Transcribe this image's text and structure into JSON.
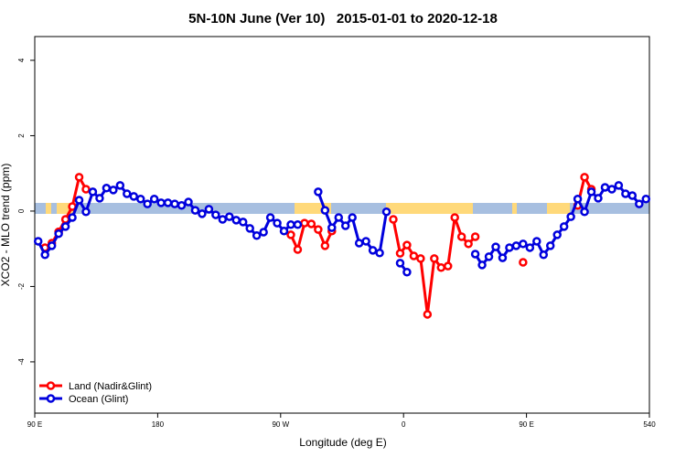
{
  "chart_data": {
    "type": "line",
    "title": "5N-10N June (Ver 10)   2015-01-01 to 2020-12-18",
    "x_label": "Longitude (deg E)",
    "y_label": "XCO2 - MLO trend (ppm)",
    "xlim": [
      90,
      540
    ],
    "xticks": [
      {
        "value": 90,
        "label": "90 E"
      },
      180,
      {
        "value": 270,
        "label": "90 W"
      },
      {
        "value": 360,
        "label": "0"
      },
      {
        "value": 450,
        "label": "90 E"
      },
      540
    ],
    "ylim": [
      -5.36,
      4.63
    ],
    "yticks": [
      -4,
      -2,
      0,
      2,
      4
    ],
    "legend": "bottom-left",
    "series": [
      {
        "name": "Land (Nadir&Glint)",
        "color": "#ff0000",
        "x": [
          97.5,
          102.5,
          107.5,
          112.5,
          117.5,
          122.5,
          127.5,
          200,
          277.5,
          282.5,
          287.5,
          292.5,
          297.5,
          302.5,
          307.5,
          330,
          352.5,
          357.5,
          362.5,
          367.5,
          372.5,
          377.5,
          382.5,
          387.5,
          392.5,
          397.5,
          402.5,
          407.5,
          412.5,
          430,
          447.5,
          470,
          487.5,
          492.5,
          497.5
        ],
        "values": [
          -0.97,
          -0.85,
          -0.55,
          -0.22,
          0.12,
          0.9,
          0.58,
          null,
          -0.63,
          -1.02,
          -0.32,
          -0.34,
          -0.49,
          -0.92,
          -0.53,
          null,
          -0.22,
          -1.12,
          -0.9,
          -1.19,
          -1.26,
          -2.74,
          -1.26,
          -1.5,
          -1.46,
          -0.17,
          -0.68,
          -0.87,
          -0.68,
          null,
          -1.36,
          null,
          0.15,
          0.9,
          0.58
        ]
      },
      {
        "name": "Ocean (Glint)",
        "color": "#0000dd",
        "x": [
          92.5,
          97.5,
          102.5,
          107.5,
          112.5,
          117.5,
          122.5,
          127.5,
          132.5,
          137.5,
          142.5,
          147.5,
          152.5,
          157.5,
          162.5,
          167.5,
          172.5,
          177.5,
          182.5,
          187.5,
          192.5,
          197.5,
          202.5,
          207.5,
          212.5,
          217.5,
          222.5,
          227.5,
          232.5,
          237.5,
          242.5,
          247.5,
          252.5,
          257.5,
          262.5,
          267.5,
          272.5,
          277.5,
          282.5,
          290,
          297.5,
          302.5,
          307.5,
          312.5,
          317.5,
          322.5,
          327.5,
          332.5,
          337.5,
          342.5,
          347.5,
          352.5,
          357.5,
          362.5,
          390,
          412.5,
          417.5,
          422.5,
          427.5,
          432.5,
          437.5,
          442.5,
          447.5,
          452.5,
          457.5,
          462.5,
          467.5,
          472.5,
          477.5,
          482.5,
          487.5,
          492.5,
          497.5,
          502.5,
          507.5,
          512.5,
          517.5,
          522.5,
          527.5,
          532.5,
          537.5
        ],
        "values": [
          -0.8,
          -1.16,
          -0.92,
          -0.6,
          -0.41,
          -0.17,
          0.29,
          -0.02,
          0.51,
          0.34,
          0.61,
          0.56,
          0.68,
          0.46,
          0.39,
          0.32,
          0.19,
          0.32,
          0.22,
          0.22,
          0.19,
          0.15,
          0.24,
          0.02,
          -0.07,
          0.05,
          -0.1,
          -0.22,
          -0.15,
          -0.24,
          -0.29,
          -0.46,
          -0.65,
          -0.56,
          -0.17,
          -0.32,
          -0.53,
          -0.36,
          -0.36,
          null,
          0.51,
          0.02,
          -0.44,
          -0.17,
          -0.39,
          -0.17,
          -0.85,
          -0.8,
          -1.04,
          -1.11,
          -0.02,
          null,
          -1.38,
          -1.62,
          null,
          -1.14,
          -1.43,
          -1.21,
          -0.95,
          -1.24,
          -0.97,
          -0.92,
          -0.87,
          -0.97,
          -0.8,
          -1.16,
          -0.92,
          -0.63,
          -0.41,
          -0.15,
          0.32,
          -0.02,
          0.51,
          0.34,
          0.63,
          0.58,
          0.68,
          0.46,
          0.41,
          0.19,
          0.32
        ]
      }
    ]
  }
}
